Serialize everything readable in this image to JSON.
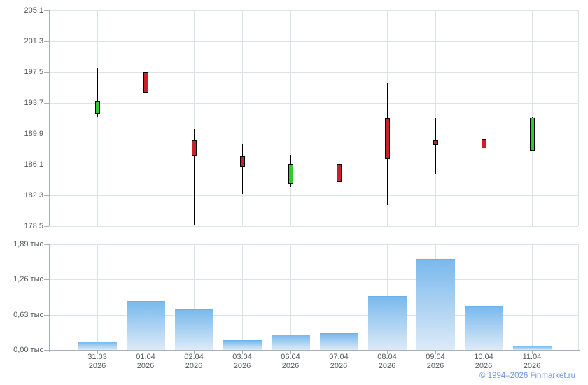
{
  "footer": {
    "text": "© 1994–2026 Finmarket.ru"
  },
  "colors": {
    "background": "#ffffff",
    "up": "#2ecb2e",
    "down": "#c9202a",
    "candle_border": "#000000",
    "wick": "#000000",
    "grid": "#dde2e7",
    "axis": "#a9b0b6",
    "text": "#53565b",
    "footer_link": "#7093da",
    "bar_top": "#79b9ed",
    "bar_bottom": "#ddeaf7",
    "bar_edge": "#6fb0e6"
  },
  "chart_data": [
    {
      "type": "candlestick",
      "panel": "price",
      "title": "",
      "ylabel": "",
      "ylim": [
        178.5,
        205.1
      ],
      "grid": true,
      "legend": false,
      "y_ticks": [
        {
          "value": 205.1,
          "label": "205,1"
        },
        {
          "value": 201.3,
          "label": "201,3"
        },
        {
          "value": 197.5,
          "label": "197,5"
        },
        {
          "value": 193.7,
          "label": "193,7"
        },
        {
          "value": 189.9,
          "label": "189,9"
        },
        {
          "value": 186.1,
          "label": "186,1"
        },
        {
          "value": 182.3,
          "label": "182,3"
        },
        {
          "value": 178.5,
          "label": "178,5"
        }
      ],
      "categories": [
        {
          "line1": "31.03",
          "line2": "2026"
        },
        {
          "line1": "01.04",
          "line2": "2026"
        },
        {
          "line1": "02.04",
          "line2": "2026"
        },
        {
          "line1": "03.04",
          "line2": "2026"
        },
        {
          "line1": "06.04",
          "line2": "2026"
        },
        {
          "line1": "07.04",
          "line2": "2026"
        },
        {
          "line1": "08.04",
          "line2": "2026"
        },
        {
          "line1": "09.04",
          "line2": "2026"
        },
        {
          "line1": "10.04",
          "line2": "2026"
        },
        {
          "line1": "11.04",
          "line2": "2026"
        }
      ],
      "candles": [
        {
          "date": "31.03.2026",
          "open": 192.3,
          "high": 198.0,
          "low": 192.0,
          "close": 194.0,
          "direction": "up"
        },
        {
          "date": "01.04.2026",
          "open": 197.5,
          "high": 203.4,
          "low": 192.5,
          "close": 194.9,
          "direction": "down"
        },
        {
          "date": "02.04.2026",
          "open": 189.1,
          "high": 190.5,
          "low": 178.7,
          "close": 187.1,
          "direction": "down"
        },
        {
          "date": "03.04.2026",
          "open": 187.1,
          "high": 188.7,
          "low": 182.5,
          "close": 185.8,
          "direction": "down"
        },
        {
          "date": "06.04.2026",
          "open": 183.7,
          "high": 187.2,
          "low": 183.3,
          "close": 186.2,
          "direction": "up"
        },
        {
          "date": "07.04.2026",
          "open": 186.2,
          "high": 187.1,
          "low": 180.1,
          "close": 183.9,
          "direction": "down"
        },
        {
          "date": "08.04.2026",
          "open": 191.8,
          "high": 196.1,
          "low": 181.1,
          "close": 186.8,
          "direction": "down"
        },
        {
          "date": "09.04.2026",
          "open": 189.1,
          "high": 191.9,
          "low": 185.0,
          "close": 188.5,
          "direction": "down"
        },
        {
          "date": "10.04.2026",
          "open": 189.2,
          "high": 192.9,
          "low": 185.9,
          "close": 188.1,
          "direction": "down"
        },
        {
          "date": "11.04.2026",
          "open": 187.8,
          "high": 192.0,
          "low": 187.7,
          "close": 191.9,
          "direction": "up"
        }
      ]
    },
    {
      "type": "bar",
      "panel": "volume",
      "title": "",
      "ylabel": "",
      "unit": "тыс",
      "ylim": [
        0,
        1.89
      ],
      "grid": true,
      "legend": false,
      "y_ticks": [
        {
          "value": 1.89,
          "label": "1,89 тыс"
        },
        {
          "value": 1.26,
          "label": "1,26 тыс"
        },
        {
          "value": 0.63,
          "label": "0,63 тыс"
        },
        {
          "value": 0.0,
          "label": "0,00 тыс"
        }
      ],
      "values": [
        0.15,
        0.88,
        0.73,
        0.17,
        0.28,
        0.3,
        0.97,
        1.63,
        0.79,
        0.08
      ]
    }
  ]
}
